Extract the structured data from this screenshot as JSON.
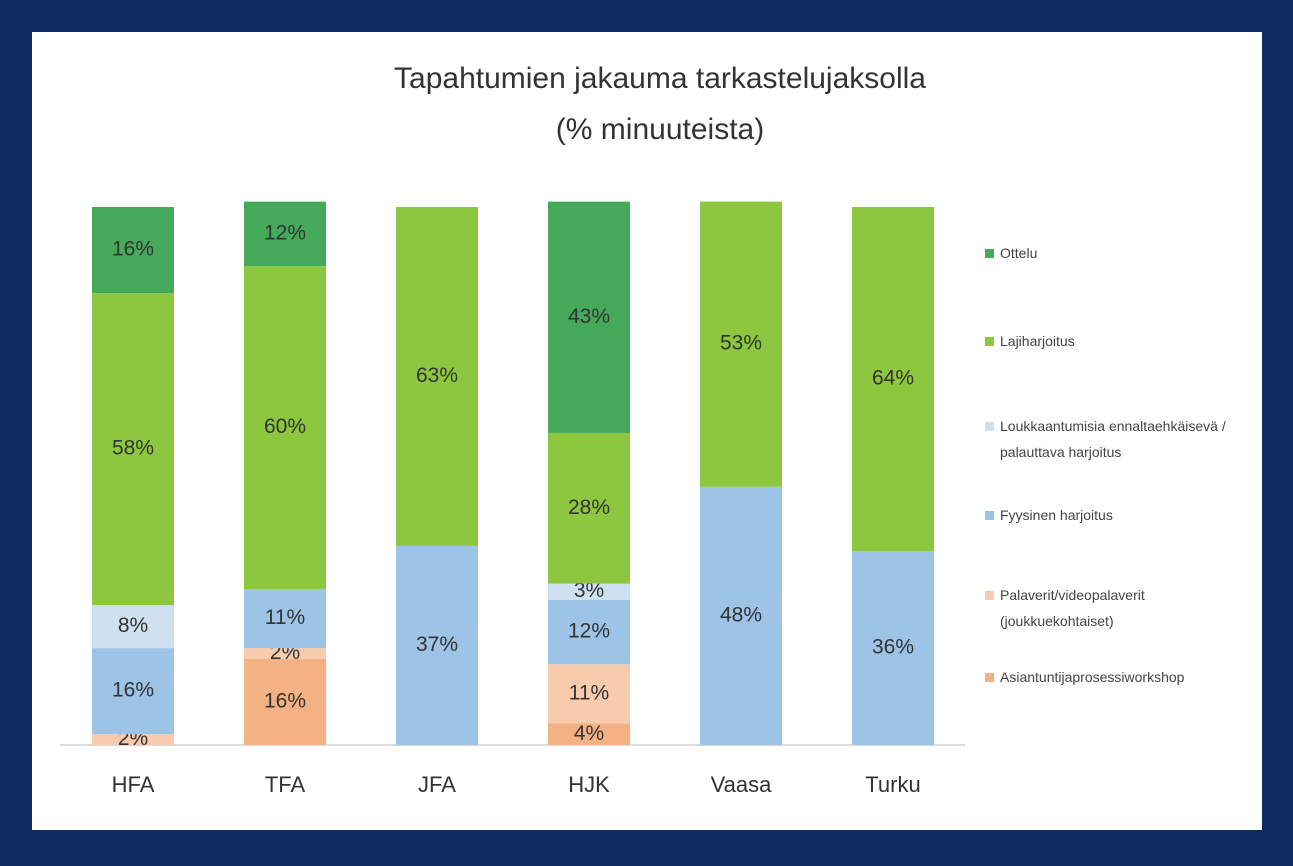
{
  "chart_data": {
    "type": "stacked_bar",
    "title": "Tapahtumien jakauma tarkastelujaksolla",
    "subtitle": "(% minuuteista)",
    "categories": [
      "HFA",
      "TFA",
      "JFA",
      "HJK",
      "Vaasa",
      "Turku"
    ],
    "ylim": [
      0,
      100
    ],
    "series": [
      {
        "name": "Asiantuntijaprosessiworkshop",
        "color": "#f4b183",
        "values": [
          null,
          16,
          null,
          4,
          null,
          null
        ],
        "value_labels": [
          null,
          "16%",
          null,
          "4%",
          null,
          null
        ]
      },
      {
        "name": "Palaverit/videopalaverit (joukkuekohtaiset)",
        "color": "#f8cbad",
        "values": [
          2,
          2,
          null,
          11,
          null,
          null
        ],
        "value_labels": [
          "2%",
          "2%",
          null,
          "11%",
          null,
          null
        ]
      },
      {
        "name": "Fyysinen harjoitus",
        "color": "#9dc3e6",
        "values": [
          16,
          11,
          37,
          12,
          48,
          36
        ],
        "value_labels": [
          "16%",
          "11%",
          "37%",
          "12%",
          "48%",
          "36%"
        ]
      },
      {
        "name": "Loukkaantumisia ennaltaehkäisevä / palauttava harjoitus",
        "color": "#cfe0f1",
        "values": [
          8,
          null,
          null,
          3,
          null,
          null
        ],
        "value_labels": [
          "8%",
          null,
          null,
          "3%",
          null,
          null
        ]
      },
      {
        "name": "Lajiharjoitus",
        "color": "#8dc63f",
        "values": [
          58,
          60,
          63,
          28,
          53,
          64
        ],
        "value_labels": [
          "58%",
          "60%",
          "63%",
          "28%",
          "53%",
          "64%"
        ]
      },
      {
        "name": "Ottelu",
        "color": "#45a95a",
        "values": [
          16,
          12,
          null,
          43,
          null,
          null
        ],
        "value_labels": [
          "16%",
          "12%",
          null,
          "43%",
          null,
          null
        ]
      }
    ]
  }
}
